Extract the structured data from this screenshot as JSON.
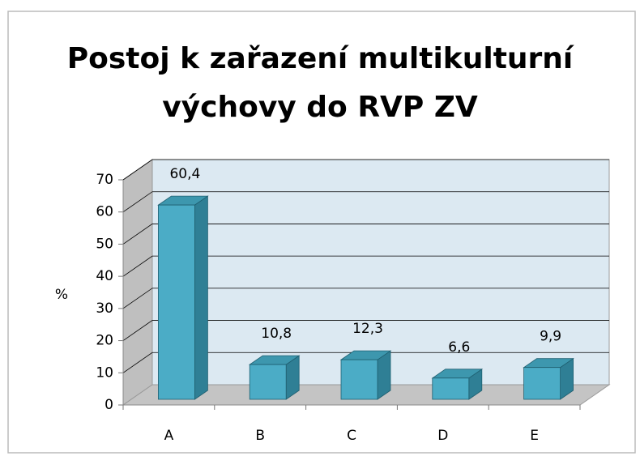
{
  "chart_data": {
    "type": "bar3d",
    "title": [
      "Postoj k zařazení multikulturní",
      "výchovy do RVP ZV"
    ],
    "ylabel": "%",
    "categories": [
      "A",
      "B",
      "C",
      "D",
      "E"
    ],
    "values": [
      60.4,
      10.8,
      12.3,
      6.6,
      9.9
    ],
    "value_labels": [
      "60,4",
      "10,8",
      "12,3",
      "6,6",
      "9,9"
    ],
    "color": "#4bacc6",
    "ylim": [
      0,
      70
    ],
    "yticks": [
      0,
      10,
      20,
      30,
      40,
      50,
      60,
      70
    ],
    "grid": true
  }
}
